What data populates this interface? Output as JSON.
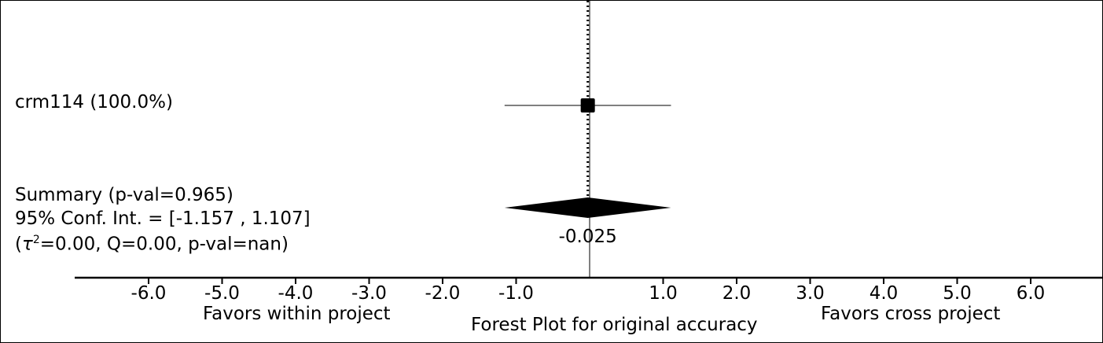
{
  "chart_data": {
    "type": "forest",
    "title": "Forest Plot for original accuracy",
    "left_label": "Favors within project",
    "right_label": "Favors cross project",
    "xlim": [
      -7.0,
      7.0
    ],
    "xticks": [
      -6.0,
      -5.0,
      -4.0,
      -3.0,
      -2.0,
      -1.0,
      1.0,
      2.0,
      3.0,
      4.0,
      5.0,
      6.0
    ],
    "xtick_labels": [
      "-6.0",
      "-5.0",
      "-4.0",
      "-3.0",
      "-2.0",
      "-1.0",
      "1.0",
      "2.0",
      "3.0",
      "4.0",
      "5.0",
      "6.0"
    ],
    "studies": [
      {
        "label": "crm114 (100.0%)",
        "estimate": -0.025,
        "ci_low": -1.157,
        "ci_high": 1.107,
        "weight": 100.0
      }
    ],
    "summary": {
      "estimate": -0.025,
      "ci_low": -1.157,
      "ci_high": 1.107,
      "estimate_label": "-0.025",
      "line1": "Summary (p-val=0.965)",
      "line2": "95% Conf. Int. = [-1.157 , 1.107]",
      "line3_prefix": "(",
      "line3_tau": "τ",
      "line3_sup": "2",
      "line3_rest": "=0.00, Q=0.00, p-val=nan)"
    },
    "reference_line": 0.0
  }
}
